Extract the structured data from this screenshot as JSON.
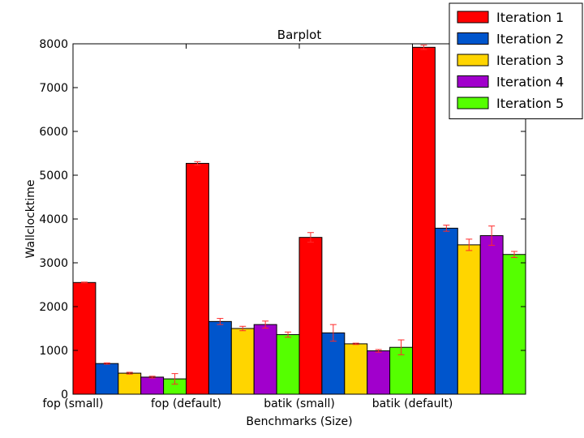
{
  "chart_data": {
    "type": "bar",
    "title": "Barplot",
    "xlabel": "Benchmarks (Size)",
    "ylabel": "Wallclocktime",
    "ylim": [
      0,
      8000
    ],
    "yticks": [
      0,
      1000,
      2000,
      3000,
      4000,
      5000,
      6000,
      7000,
      8000
    ],
    "grid": false,
    "legend_position": "top-right",
    "categories": [
      "fop (small)",
      "fop (default)",
      "batik (small)",
      "batik (default)"
    ],
    "error_bar_color": "#ff2a2a",
    "series": [
      {
        "name": "Iteration 1",
        "color": "#ff0000",
        "values": [
          2550,
          5270,
          3580,
          7920
        ],
        "errors": [
          10,
          40,
          110,
          50
        ]
      },
      {
        "name": "Iteration 2",
        "color": "#0055cc",
        "values": [
          700,
          1660,
          1400,
          3790
        ],
        "errors": [
          15,
          70,
          190,
          70
        ]
      },
      {
        "name": "Iteration 3",
        "color": "#ffd500",
        "values": [
          480,
          1500,
          1150,
          3410
        ],
        "errors": [
          20,
          50,
          15,
          130
        ]
      },
      {
        "name": "Iteration 4",
        "color": "#a100cc",
        "values": [
          390,
          1590,
          990,
          3620
        ],
        "errors": [
          20,
          80,
          30,
          220
        ]
      },
      {
        "name": "Iteration 5",
        "color": "#55ff00",
        "values": [
          350,
          1360,
          1070,
          3190
        ],
        "errors": [
          120,
          60,
          170,
          70
        ]
      }
    ]
  }
}
